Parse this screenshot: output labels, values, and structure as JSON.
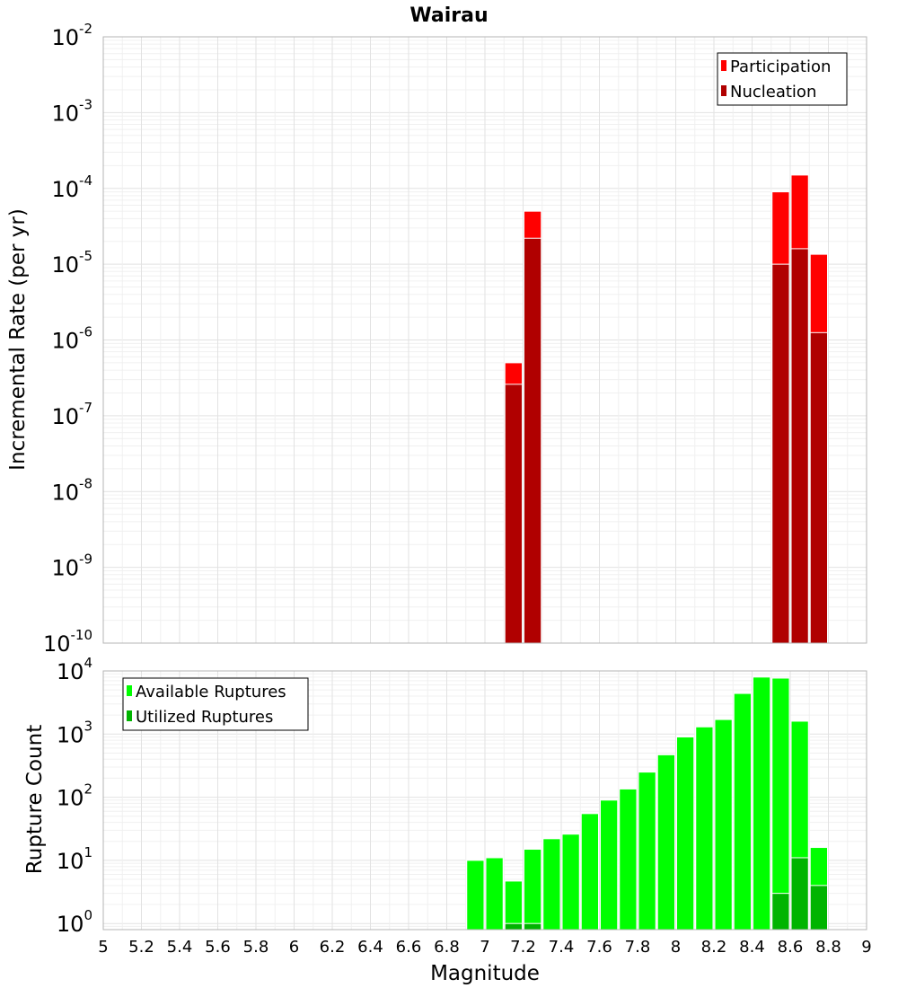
{
  "chart_data": [
    {
      "type": "bar",
      "title": "Wairau",
      "xlabel": "",
      "ylabel": "Incremental Rate (per yr)",
      "yscale": "log",
      "ylim": [
        1e-10,
        0.01
      ],
      "xlim": [
        5,
        9
      ],
      "bin_width": 0.1,
      "x_ticks": [
        "5",
        "5.2",
        "5.4",
        "5.6",
        "5.8",
        "6",
        "6.2",
        "6.4",
        "6.6",
        "6.8",
        "7",
        "7.2",
        "7.4",
        "7.6",
        "7.8",
        "8",
        "8.2",
        "8.4",
        "8.6",
        "8.8",
        "9"
      ],
      "y_ticks": [
        {
          "base": "10",
          "exp": "-10"
        },
        {
          "base": "10",
          "exp": "-9"
        },
        {
          "base": "10",
          "exp": "-8"
        },
        {
          "base": "10",
          "exp": "-7"
        },
        {
          "base": "10",
          "exp": "-6"
        },
        {
          "base": "10",
          "exp": "-5"
        },
        {
          "base": "10",
          "exp": "-4"
        },
        {
          "base": "10",
          "exp": "-3"
        },
        {
          "base": "10",
          "exp": "-2"
        }
      ],
      "legend": {
        "position": "top-right"
      },
      "grid": true,
      "series": [
        {
          "name": "Participation",
          "color": "#ff0000",
          "points": [
            {
              "x": 7.15,
              "y": 5e-07
            },
            {
              "x": 7.25,
              "y": 5e-05
            },
            {
              "x": 8.55,
              "y": 9e-05
            },
            {
              "x": 8.65,
              "y": 0.00015
            },
            {
              "x": 8.75,
              "y": 1.35e-05
            }
          ]
        },
        {
          "name": "Nucleation",
          "color": "#b00000",
          "points": [
            {
              "x": 7.15,
              "y": 2.6e-07
            },
            {
              "x": 7.25,
              "y": 2.2e-05
            },
            {
              "x": 8.55,
              "y": 1e-05
            },
            {
              "x": 8.65,
              "y": 1.6e-05
            },
            {
              "x": 8.75,
              "y": 1.25e-06
            }
          ]
        }
      ]
    },
    {
      "type": "bar",
      "title": "",
      "xlabel": "Magnitude",
      "ylabel": "Rupture Count",
      "yscale": "log",
      "ylim": [
        0.8,
        10000
      ],
      "xlim": [
        5,
        9
      ],
      "bin_width": 0.1,
      "x_ticks": [
        "5",
        "5.2",
        "5.4",
        "5.6",
        "5.8",
        "6",
        "6.2",
        "6.4",
        "6.6",
        "6.8",
        "7",
        "7.2",
        "7.4",
        "7.6",
        "7.8",
        "8",
        "8.2",
        "8.4",
        "8.6",
        "8.8",
        "9"
      ],
      "y_ticks": [
        {
          "base": "10",
          "exp": "0"
        },
        {
          "base": "10",
          "exp": "1"
        },
        {
          "base": "10",
          "exp": "2"
        },
        {
          "base": "10",
          "exp": "3"
        },
        {
          "base": "10",
          "exp": "4"
        }
      ],
      "legend": {
        "position": "top-left"
      },
      "grid": true,
      "series": [
        {
          "name": "Available Ruptures",
          "color": "#00ff00",
          "points": [
            {
              "x": 6.95,
              "y": 10
            },
            {
              "x": 7.05,
              "y": 11
            },
            {
              "x": 7.15,
              "y": 4.7
            },
            {
              "x": 7.25,
              "y": 15
            },
            {
              "x": 7.35,
              "y": 22
            },
            {
              "x": 7.45,
              "y": 26
            },
            {
              "x": 7.55,
              "y": 55
            },
            {
              "x": 7.65,
              "y": 90
            },
            {
              "x": 7.75,
              "y": 135
            },
            {
              "x": 7.85,
              "y": 250
            },
            {
              "x": 7.95,
              "y": 470
            },
            {
              "x": 8.05,
              "y": 900
            },
            {
              "x": 8.15,
              "y": 1300
            },
            {
              "x": 8.25,
              "y": 1700
            },
            {
              "x": 8.35,
              "y": 4400
            },
            {
              "x": 8.45,
              "y": 8000
            },
            {
              "x": 8.55,
              "y": 7700
            },
            {
              "x": 8.65,
              "y": 1600
            },
            {
              "x": 8.75,
              "y": 16
            }
          ]
        },
        {
          "name": "Utilized Ruptures",
          "color": "#00b400",
          "points": [
            {
              "x": 7.15,
              "y": 1
            },
            {
              "x": 7.25,
              "y": 1
            },
            {
              "x": 8.55,
              "y": 3
            },
            {
              "x": 8.65,
              "y": 11
            },
            {
              "x": 8.75,
              "y": 4
            }
          ]
        }
      ]
    }
  ]
}
